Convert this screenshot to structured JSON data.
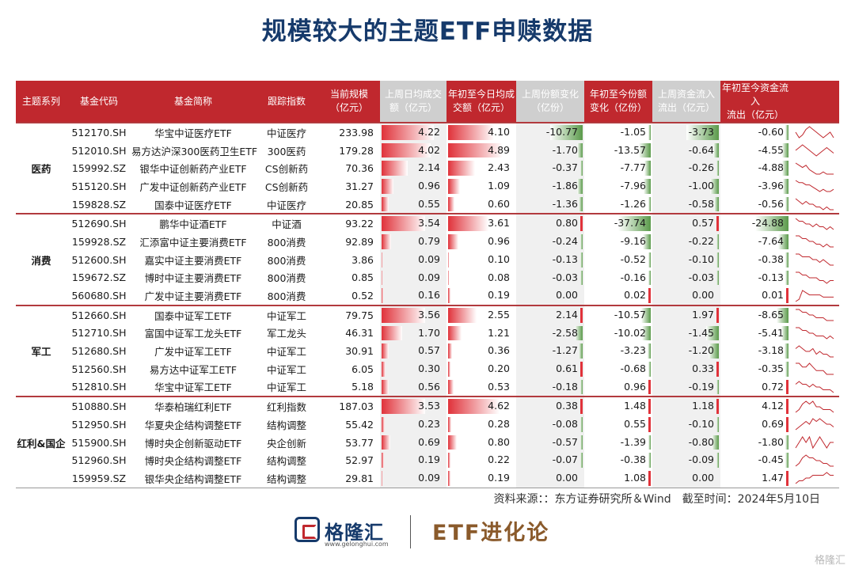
{
  "title": "规模较大的主题ETF申赎数据",
  "headers": [
    "主题系列",
    "基金代码",
    "基金简称",
    "跟踪指数",
    "当前规模\n（亿元）",
    "上周日均成交\n额（亿元）",
    "年初至今日均成\n交额（亿元）",
    "上周份额变化\n（亿份）",
    "年初至今份额\n变化（亿份）",
    "上周资金流入\n流出（亿元）",
    "年初至今资金流入\n流出（亿元）",
    ""
  ],
  "groups": [
    {
      "series": "医药",
      "rows": [
        {
          "code": "512170.SH",
          "name": "华宝中证医疗ETF",
          "index": "中证医疗",
          "size": "233.98",
          "wk_avg": "4.22",
          "ytd_avg": "4.10",
          "wk_share": "-10.77",
          "ytd_share": "-1.05",
          "wk_flow": "-3.73",
          "ytd_flow": "-0.60",
          "spark": [
            5,
            3,
            4,
            6,
            7,
            6,
            5,
            4,
            3,
            4,
            5,
            3
          ]
        },
        {
          "code": "512010.SH",
          "name": "易方达沪深300医药卫生ETF",
          "index": "300医药",
          "size": "179.28",
          "wk_avg": "4.02",
          "ytd_avg": "4.89",
          "wk_share": "-1.70",
          "ytd_share": "-13.57",
          "wk_flow": "-0.64",
          "ytd_flow": "-4.55",
          "spark": [
            4,
            5,
            6,
            5,
            4,
            3,
            2,
            3,
            4,
            5,
            4,
            3
          ]
        },
        {
          "code": "159992.SZ",
          "name": "银华中证创新药产业ETF",
          "index": "CS创新药",
          "size": "70.36",
          "wk_avg": "2.14",
          "ytd_avg": "2.43",
          "wk_share": "-0.37",
          "ytd_share": "-7.77",
          "wk_flow": "-0.26",
          "ytd_flow": "-4.88",
          "spark": [
            7,
            6,
            5,
            6,
            4,
            3,
            2,
            2,
            3,
            2,
            2,
            2
          ]
        },
        {
          "code": "515120.SH",
          "name": "广发中证创新药产业ETF",
          "index": "CS创新药",
          "size": "31.27",
          "wk_avg": "0.96",
          "ytd_avg": "1.09",
          "wk_share": "-1.86",
          "ytd_share": "-7.96",
          "wk_flow": "-1.00",
          "ytd_flow": "-3.96",
          "spark": [
            7,
            6,
            6,
            5,
            5,
            4,
            3,
            2,
            3,
            2,
            2,
            3
          ]
        },
        {
          "code": "159828.SZ",
          "name": "国泰中证医疗ETF",
          "index": "中证医疗",
          "size": "20.85",
          "wk_avg": "0.55",
          "ytd_avg": "0.60",
          "wk_share": "-1.36",
          "ytd_share": "-1.26",
          "wk_flow": "-0.58",
          "ytd_flow": "-0.56",
          "spark": [
            6,
            5,
            4,
            5,
            4,
            4,
            3,
            3,
            2,
            3,
            2,
            2
          ]
        }
      ]
    },
    {
      "series": "消费",
      "rows": [
        {
          "code": "512690.SH",
          "name": "鹏华中证酒ETF",
          "index": "中证酒",
          "size": "93.22",
          "wk_avg": "3.54",
          "ytd_avg": "3.61",
          "wk_share": "0.80",
          "ytd_share": "-37.74",
          "wk_flow": "0.57",
          "ytd_flow": "-24.88",
          "spark": [
            6,
            5,
            5,
            4,
            4,
            3,
            4,
            3,
            3,
            2,
            3,
            2
          ]
        },
        {
          "code": "159928.SZ",
          "name": "汇添富中证主要消费ETF",
          "index": "800消费",
          "size": "92.89",
          "wk_avg": "0.79",
          "ytd_avg": "0.96",
          "wk_share": "-0.24",
          "ytd_share": "-9.16",
          "wk_flow": "-0.22",
          "ytd_flow": "-7.64",
          "spark": [
            6,
            6,
            5,
            5,
            4,
            4,
            3,
            3,
            2,
            3,
            2,
            2
          ]
        },
        {
          "code": "512600.SH",
          "name": "嘉实中证主要消费ETF",
          "index": "800消费",
          "size": "3.86",
          "wk_avg": "0.09",
          "ytd_avg": "0.10",
          "wk_share": "-0.13",
          "ytd_share": "-0.52",
          "wk_flow": "-0.10",
          "ytd_flow": "-0.38",
          "spark": [
            6,
            6,
            5,
            5,
            5,
            4,
            4,
            3,
            4,
            3,
            2,
            2
          ]
        },
        {
          "code": "159672.SZ",
          "name": "博时中证主要消费ETF",
          "index": "800消费",
          "size": "0.85",
          "wk_avg": "0.09",
          "ytd_avg": "0.08",
          "wk_share": "-0.03",
          "ytd_share": "-0.16",
          "wk_flow": "-0.03",
          "ytd_flow": "-0.13",
          "spark": [
            6,
            6,
            5,
            5,
            4,
            4,
            4,
            3,
            3,
            2,
            3,
            3
          ]
        },
        {
          "code": "560680.SH",
          "name": "广发中证主要消费ETF",
          "index": "800消费",
          "size": "0.52",
          "wk_avg": "0.16",
          "ytd_avg": "0.19",
          "wk_share": "0.00",
          "ytd_share": "0.02",
          "wk_flow": "0.00",
          "ytd_flow": "0.01",
          "spark": [
            1,
            2,
            6,
            5,
            4,
            4,
            4,
            4,
            3,
            3,
            3,
            3
          ]
        }
      ]
    },
    {
      "series": "军工",
      "rows": [
        {
          "code": "512660.SH",
          "name": "国泰中证军工ETF",
          "index": "中证军工",
          "size": "79.75",
          "wk_avg": "3.56",
          "ytd_avg": "2.55",
          "wk_share": "2.14",
          "ytd_share": "-10.57",
          "wk_flow": "1.97",
          "ytd_flow": "-8.65",
          "spark": [
            6,
            6,
            5,
            5,
            4,
            4,
            3,
            3,
            3,
            2,
            2,
            2
          ]
        },
        {
          "code": "512710.SH",
          "name": "富国中证军工龙头ETF",
          "index": "军工龙头",
          "size": "46.31",
          "wk_avg": "1.70",
          "ytd_avg": "1.21",
          "wk_share": "-2.58",
          "ytd_share": "-10.02",
          "wk_flow": "-1.45",
          "ytd_flow": "-5.41",
          "spark": [
            6,
            6,
            5,
            5,
            4,
            4,
            3,
            3,
            3,
            2,
            3,
            2
          ]
        },
        {
          "code": "512680.SH",
          "name": "广发中证军工ETF",
          "index": "中证军工",
          "size": "30.91",
          "wk_avg": "0.57",
          "ytd_avg": "0.36",
          "wk_share": "-1.27",
          "ytd_share": "-3.23",
          "wk_flow": "-1.20",
          "ytd_flow": "-3.18",
          "spark": [
            5,
            6,
            5,
            4,
            4,
            5,
            3,
            4,
            3,
            3,
            2,
            2
          ]
        },
        {
          "code": "512560.SH",
          "name": "易方达中证军工ETF",
          "index": "中证军工",
          "size": "6.05",
          "wk_avg": "0.30",
          "ytd_avg": "0.20",
          "wk_share": "0.61",
          "ytd_share": "-0.68",
          "wk_flow": "0.33",
          "ytd_flow": "-0.35",
          "spark": [
            5,
            5,
            4,
            4,
            5,
            4,
            3,
            3,
            3,
            2,
            2,
            2
          ]
        },
        {
          "code": "512810.SH",
          "name": "华宝中证军工ETF",
          "index": "中证军工",
          "size": "5.18",
          "wk_avg": "0.56",
          "ytd_avg": "0.53",
          "wk_share": "-0.18",
          "ytd_share": "0.96",
          "wk_flow": "-0.19",
          "ytd_flow": "0.72",
          "spark": [
            5,
            6,
            5,
            5,
            4,
            5,
            4,
            4,
            3,
            3,
            3,
            2
          ]
        }
      ]
    },
    {
      "series": "红利&国企",
      "rows": [
        {
          "code": "510880.SH",
          "name": "华泰柏瑞红利ETF",
          "index": "红利指数",
          "size": "187.03",
          "wk_avg": "3.53",
          "ytd_avg": "4.62",
          "wk_share": "0.38",
          "ytd_share": "1.48",
          "wk_flow": "1.18",
          "ytd_flow": "4.12",
          "spark": [
            2,
            3,
            5,
            6,
            5,
            6,
            4,
            4,
            3,
            3,
            3,
            2
          ]
        },
        {
          "code": "512950.SH",
          "name": "华夏央企结构调整ETF",
          "index": "结构调整",
          "size": "55.42",
          "wk_avg": "0.23",
          "ytd_avg": "0.28",
          "wk_share": "-0.08",
          "ytd_share": "0.55",
          "wk_flow": "-0.10",
          "ytd_flow": "0.69",
          "spark": [
            2,
            3,
            4,
            5,
            4,
            6,
            5,
            6,
            5,
            4,
            4,
            3
          ]
        },
        {
          "code": "515900.SH",
          "name": "博时央企创新驱动ETF",
          "index": "央企创新",
          "size": "53.77",
          "wk_avg": "0.69",
          "ytd_avg": "0.80",
          "wk_share": "-0.57",
          "ytd_share": "-1.39",
          "wk_flow": "-0.80",
          "ytd_flow": "-1.80",
          "spark": [
            3,
            4,
            5,
            4,
            5,
            3,
            4,
            5,
            4,
            3,
            4,
            4
          ]
        },
        {
          "code": "512960.SH",
          "name": "博时央企结构调整ETF",
          "index": "结构调整",
          "size": "52.97",
          "wk_avg": "0.19",
          "ytd_avg": "0.22",
          "wk_share": "-0.07",
          "ytd_share": "-0.38",
          "wk_flow": "-0.09",
          "ytd_flow": "-0.45",
          "spark": [
            2,
            3,
            5,
            6,
            5,
            5,
            4,
            4,
            3,
            3,
            2,
            2
          ]
        },
        {
          "code": "159959.SZ",
          "name": "银华央企结构调整ETF",
          "index": "结构调整",
          "size": "29.81",
          "wk_avg": "0.09",
          "ytd_avg": "0.19",
          "wk_share": "0.00",
          "ytd_share": "1.08",
          "wk_flow": "0.00",
          "ytd_flow": "1.47",
          "spark": [
            2,
            3,
            3,
            4,
            4,
            5,
            5,
            5,
            5,
            6,
            5,
            5
          ]
        }
      ]
    }
  ],
  "source": "资料来源：：东方证券研究所＆Wind　截至时间：2024年5月10日",
  "logo_text": "格隆汇",
  "logo_url": "www.gelonghui.com",
  "brand2": "ETF进化论",
  "watermark": "格隆汇",
  "colors": {
    "header_red": "#c0282e",
    "header_gray": "#cfcfcf",
    "title_blue": "#163a6b",
    "bar_red": "#e0323a",
    "bar_green": "#5a9a4a",
    "spark": "#c0282e"
  }
}
